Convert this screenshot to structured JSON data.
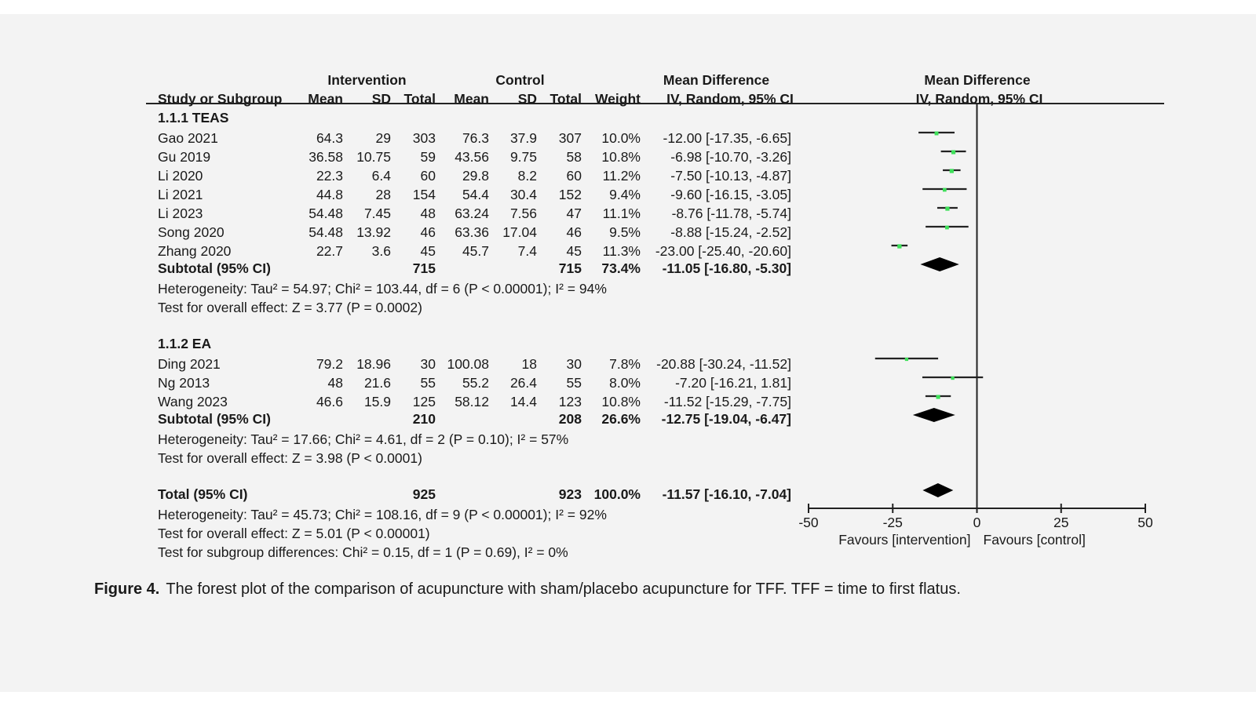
{
  "header": {
    "intervention": "Intervention",
    "control": "Control",
    "md_text": "Mean Difference",
    "md_plot": "Mean Difference",
    "cols": {
      "study": "Study or Subgroup",
      "i_mean": "Mean",
      "i_sd": "SD",
      "i_total": "Total",
      "c_mean": "Mean",
      "c_sd": "SD",
      "c_total": "Total",
      "weight": "Weight",
      "md": "IV, Random, 95% CI",
      "md_plot": "IV, Random, 95% CI"
    }
  },
  "groups": [
    {
      "title": "1.1.1 TEAS",
      "studies": [
        {
          "name": "Gao 2021",
          "i_mean": "64.3",
          "i_sd": "29",
          "i_total": "303",
          "c_mean": "76.3",
          "c_sd": "37.9",
          "c_total": "307",
          "weight": "10.0%",
          "md_text": "-12.00 [-17.35, -6.65]"
        },
        {
          "name": "Gu 2019",
          "i_mean": "36.58",
          "i_sd": "10.75",
          "i_total": "59",
          "c_mean": "43.56",
          "c_sd": "9.75",
          "c_total": "58",
          "weight": "10.8%",
          "md_text": "-6.98 [-10.70, -3.26]"
        },
        {
          "name": "Li 2020",
          "i_mean": "22.3",
          "i_sd": "6.4",
          "i_total": "60",
          "c_mean": "29.8",
          "c_sd": "8.2",
          "c_total": "60",
          "weight": "11.2%",
          "md_text": "-7.50 [-10.13, -4.87]"
        },
        {
          "name": "Li 2021",
          "i_mean": "44.8",
          "i_sd": "28",
          "i_total": "154",
          "c_mean": "54.4",
          "c_sd": "30.4",
          "c_total": "152",
          "weight": "9.4%",
          "md_text": "-9.60 [-16.15, -3.05]"
        },
        {
          "name": "Li 2023",
          "i_mean": "54.48",
          "i_sd": "7.45",
          "i_total": "48",
          "c_mean": "63.24",
          "c_sd": "7.56",
          "c_total": "47",
          "weight": "11.1%",
          "md_text": "-8.76 [-11.78, -5.74]"
        },
        {
          "name": "Song 2020",
          "i_mean": "54.48",
          "i_sd": "13.92",
          "i_total": "46",
          "c_mean": "63.36",
          "c_sd": "17.04",
          "c_total": "46",
          "weight": "9.5%",
          "md_text": "-8.88 [-15.24, -2.52]"
        },
        {
          "name": "Zhang 2020",
          "i_mean": "22.7",
          "i_sd": "3.6",
          "i_total": "45",
          "c_mean": "45.7",
          "c_sd": "7.4",
          "c_total": "45",
          "weight": "11.3%",
          "md_text": "-23.00 [-25.40, -20.60]"
        }
      ],
      "subtotal": {
        "label": "Subtotal (95% CI)",
        "i_total": "715",
        "c_total": "715",
        "weight": "73.4%",
        "md_text": "-11.05 [-16.80, -5.30]"
      },
      "heterogeneity": "Heterogeneity: Tau² = 54.97; Chi² = 103.44, df = 6 (P < 0.00001); I² = 94%",
      "overall": "Test for overall effect: Z = 3.77 (P = 0.0002)"
    },
    {
      "title": "1.1.2 EA",
      "studies": [
        {
          "name": "Ding 2021",
          "i_mean": "79.2",
          "i_sd": "18.96",
          "i_total": "30",
          "c_mean": "100.08",
          "c_sd": "18",
          "c_total": "30",
          "weight": "7.8%",
          "md_text": "-20.88 [-30.24, -11.52]"
        },
        {
          "name": "Ng 2013",
          "i_mean": "48",
          "i_sd": "21.6",
          "i_total": "55",
          "c_mean": "55.2",
          "c_sd": "26.4",
          "c_total": "55",
          "weight": "8.0%",
          "md_text": "-7.20 [-16.21, 1.81]"
        },
        {
          "name": "Wang 2023",
          "i_mean": "46.6",
          "i_sd": "15.9",
          "i_total": "125",
          "c_mean": "58.12",
          "c_sd": "14.4",
          "c_total": "123",
          "weight": "10.8%",
          "md_text": "-11.52 [-15.29, -7.75]"
        }
      ],
      "subtotal": {
        "label": "Subtotal (95% CI)",
        "i_total": "210",
        "c_total": "208",
        "weight": "26.6%",
        "md_text": "-12.75 [-19.04, -6.47]"
      },
      "heterogeneity": "Heterogeneity: Tau² = 17.66; Chi² = 4.61, df = 2 (P = 0.10); I² = 57%",
      "overall": "Test for overall effect: Z = 3.98 (P < 0.0001)"
    }
  ],
  "total": {
    "label": "Total (95% CI)",
    "i_total": "925",
    "c_total": "923",
    "weight": "100.0%",
    "md_text": "-11.57 [-16.10, -7.04]",
    "heterogeneity": "Heterogeneity: Tau² = 45.73; Chi² = 108.16, df = 9 (P < 0.00001); I² = 92%",
    "overall": "Test for overall effect: Z = 5.01 (P < 0.00001)",
    "subgroup": "Test for subgroup differences: Chi² = 0.15, df = 1 (P = 0.69), I² = 0%"
  },
  "caption": {
    "label": "Figure 4.",
    "text": "The forest plot of the comparison of acupuncture with sham/placebo acupuncture for TFF. TFF = time to first flatus."
  },
  "chart_data": {
    "type": "forest",
    "title": "Mean Difference IV, Random, 95% CI",
    "xlim": [
      -50,
      50
    ],
    "xticks": [
      -50,
      -25,
      0,
      25,
      50
    ],
    "xtick_labels": [
      "-50",
      "-25",
      "0",
      "25",
      "50"
    ],
    "favours_left": "Favours [intervention]",
    "favours_right": "Favours [control]",
    "colors": {
      "point": "#3ee05a",
      "line": "#222222",
      "diamond": "#000000"
    },
    "studies": [
      {
        "name": "Gao 2021",
        "md": -12.0,
        "lo": -17.35,
        "hi": -6.65,
        "weight": 10.0
      },
      {
        "name": "Gu 2019",
        "md": -6.98,
        "lo": -10.7,
        "hi": -3.26,
        "weight": 10.8
      },
      {
        "name": "Li 2020",
        "md": -7.5,
        "lo": -10.13,
        "hi": -4.87,
        "weight": 11.2
      },
      {
        "name": "Li 2021",
        "md": -9.6,
        "lo": -16.15,
        "hi": -3.05,
        "weight": 9.4
      },
      {
        "name": "Li 2023",
        "md": -8.76,
        "lo": -11.78,
        "hi": -5.74,
        "weight": 11.1
      },
      {
        "name": "Song 2020",
        "md": -8.88,
        "lo": -15.24,
        "hi": -2.52,
        "weight": 9.5
      },
      {
        "name": "Zhang 2020",
        "md": -23.0,
        "lo": -25.4,
        "hi": -20.6,
        "weight": 11.3
      },
      {
        "name": "Ding 2021",
        "md": -20.88,
        "lo": -30.24,
        "hi": -11.52,
        "weight": 7.8
      },
      {
        "name": "Ng 2013",
        "md": -7.2,
        "lo": -16.21,
        "hi": 1.81,
        "weight": 8.0
      },
      {
        "name": "Wang 2023",
        "md": -11.52,
        "lo": -15.29,
        "hi": -7.75,
        "weight": 10.8
      }
    ],
    "summaries": [
      {
        "name": "Subtotal 1.1.1 TEAS",
        "md": -11.05,
        "lo": -16.8,
        "hi": -5.3
      },
      {
        "name": "Subtotal 1.1.2 EA",
        "md": -12.75,
        "lo": -19.04,
        "hi": -6.47
      },
      {
        "name": "Total",
        "md": -11.57,
        "lo": -16.1,
        "hi": -7.04
      }
    ]
  }
}
